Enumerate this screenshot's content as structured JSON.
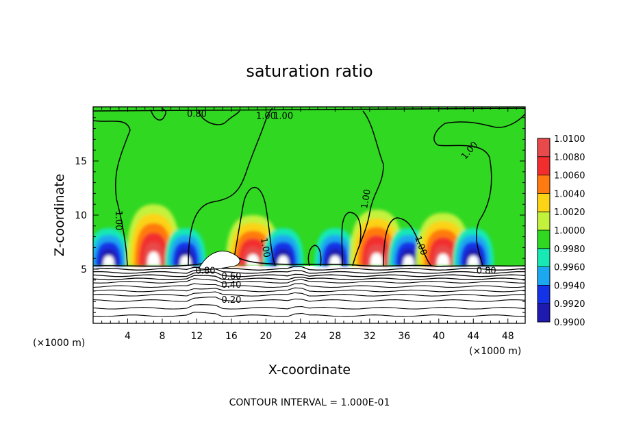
{
  "chart_data": {
    "type": "heatmap",
    "title": "saturation ratio",
    "xlabel": "X-coordinate",
    "ylabel": "Z-coordinate",
    "x_unit_label": "(×1000 m)",
    "x_unit_label_right": "(×1000 m)",
    "xlim": [
      0,
      50
    ],
    "ylim": [
      0,
      20
    ],
    "x_ticks": [
      4,
      8,
      12,
      16,
      20,
      24,
      28,
      32,
      36,
      40,
      44,
      48
    ],
    "y_ticks": [
      5,
      10,
      15
    ],
    "colorbar": {
      "levels": [
        "1.0100",
        "1.0080",
        "1.0060",
        "1.0040",
        "1.0020",
        "1.0000",
        "0.9980",
        "0.9960",
        "0.9940",
        "0.9920",
        "0.9900"
      ],
      "colors": [
        "#e8494a",
        "#f22d2d",
        "#ff7a10",
        "#fcd315",
        "#c3f23c",
        "#30d822",
        "#18e8b4",
        "#1ba8f0",
        "#1432e6",
        "#1e1ab0",
        "#5a1aa0"
      ]
    },
    "contour_labels": [
      "0.80",
      "1.00",
      "1.00",
      "1.00",
      "1.00",
      "1.00",
      "1.00",
      "1.00",
      "0.80",
      "0.80",
      "0.60",
      "0.40",
      "0.20"
    ],
    "contour_levels": [
      0.2,
      0.4,
      0.6,
      0.8,
      1.0
    ],
    "annotation": "CONTOUR INTERVAL = 1.000E-01",
    "cloud_features": [
      {
        "kind": "dry",
        "x": 1.8,
        "z": 6.0
      },
      {
        "kind": "moist",
        "x": 7.0,
        "z": 7.0
      },
      {
        "kind": "dry",
        "x": 10.7,
        "z": 6.0
      },
      {
        "kind": "moist",
        "x": 18.5,
        "z": 6.0
      },
      {
        "kind": "dry",
        "x": 22.0,
        "z": 6.0
      },
      {
        "kind": "dry",
        "x": 28.0,
        "z": 6.0
      },
      {
        "kind": "moist",
        "x": 32.8,
        "z": 6.5
      },
      {
        "kind": "dry",
        "x": 36.5,
        "z": 6.0
      },
      {
        "kind": "moist",
        "x": 40.5,
        "z": 6.2
      },
      {
        "kind": "dry",
        "x": 44.0,
        "z": 6.0
      }
    ]
  }
}
